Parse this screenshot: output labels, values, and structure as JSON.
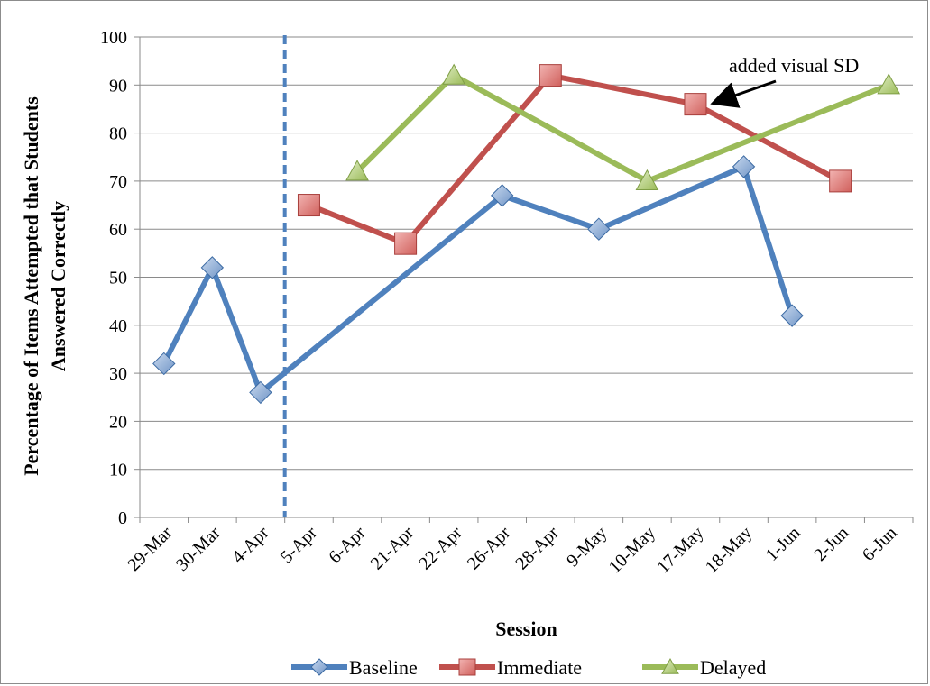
{
  "chart_data": {
    "type": "line",
    "xlabel": "Session",
    "ylabel_line1": "Percentage of Items Attempted that Students",
    "ylabel_line2": "Answered Correctly",
    "ylim": [
      0,
      100
    ],
    "yticks": [
      0,
      10,
      20,
      30,
      40,
      50,
      60,
      70,
      80,
      90,
      100
    ],
    "grid": true,
    "legend_position": "bottom",
    "categories": [
      "29-Mar",
      "30-Mar",
      "4-Apr",
      "5-Apr",
      "6-Apr",
      "21-Apr",
      "22-Apr",
      "26-Apr",
      "28-Apr",
      "9-May",
      "10-May",
      "17-May",
      "18-May",
      "1-Jun",
      "2-Jun",
      "6-Jun"
    ],
    "phase_change_after": "4-Apr",
    "series": [
      {
        "name": "Baseline",
        "color": "#4f81bd",
        "marker": "diamond",
        "values": [
          32,
          52,
          26,
          null,
          null,
          null,
          null,
          67,
          null,
          60,
          null,
          null,
          73,
          42,
          null,
          null
        ]
      },
      {
        "name": "Immediate",
        "color": "#c0504d",
        "marker": "square",
        "values": [
          null,
          null,
          null,
          65,
          null,
          57,
          null,
          null,
          92,
          null,
          null,
          86,
          null,
          null,
          70,
          null
        ]
      },
      {
        "name": "Delayed",
        "color": "#9bbb59",
        "marker": "triangle",
        "values": [
          null,
          null,
          null,
          null,
          72,
          null,
          92,
          null,
          null,
          null,
          70,
          null,
          null,
          null,
          null,
          90
        ]
      }
    ],
    "annotations": [
      {
        "text": "added visual SD",
        "target_category": "17-May",
        "target_value": 86
      }
    ]
  }
}
